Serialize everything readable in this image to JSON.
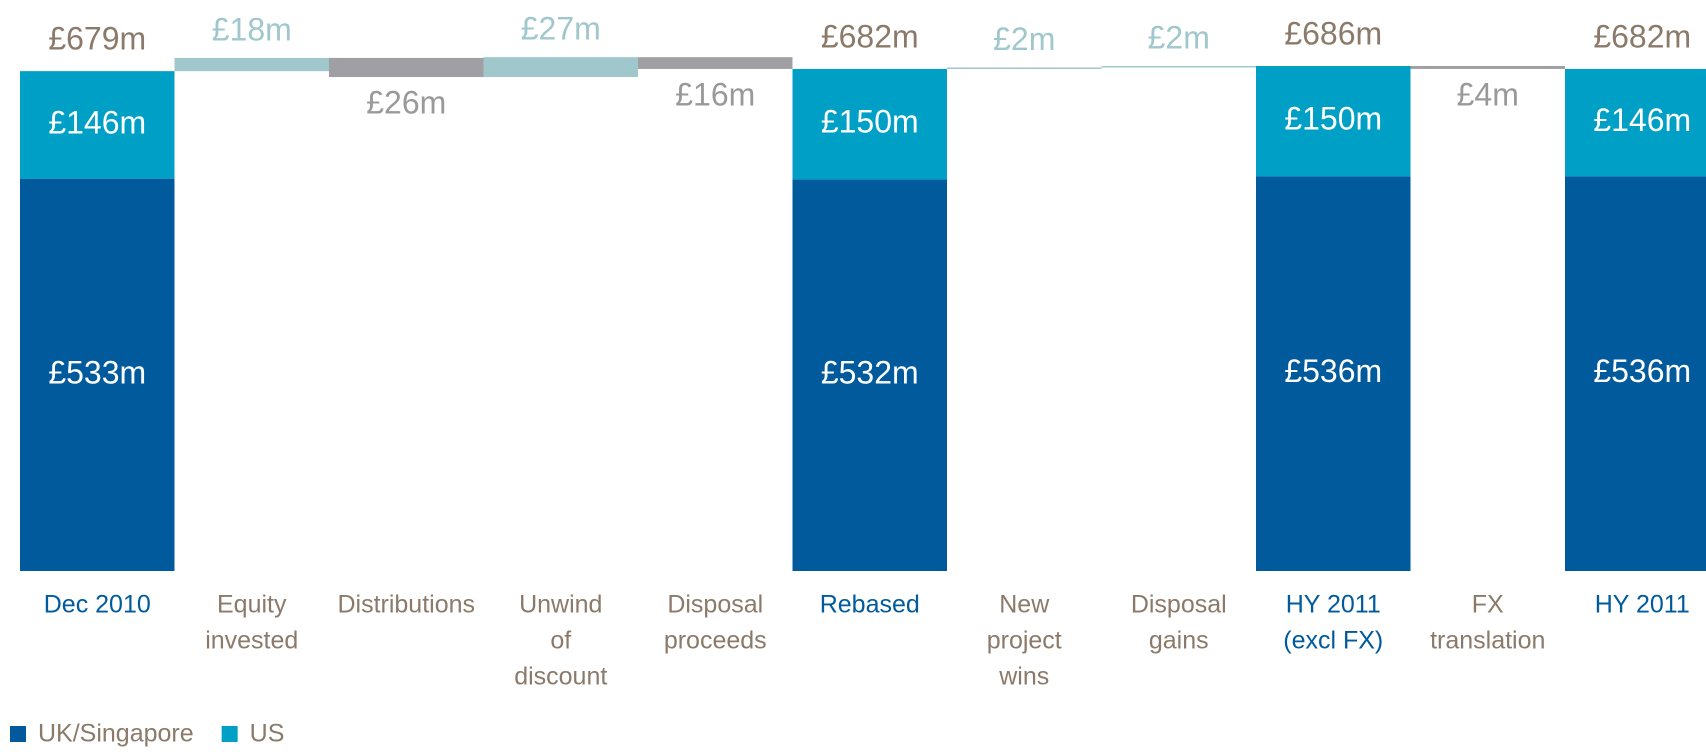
{
  "chart_data": {
    "type": "waterfall",
    "categories": [
      [
        "Dec 2010"
      ],
      [
        "Equity",
        "invested"
      ],
      [
        "Distributions"
      ],
      [
        "Unwind",
        "of",
        "discount"
      ],
      [
        "Disposal",
        "proceeds"
      ],
      [
        "Rebased"
      ],
      [
        "New",
        "project",
        "wins"
      ],
      [
        "Disposal",
        "gains"
      ],
      [
        "HY 2011",
        "(excl FX)"
      ],
      [
        "FX",
        "translation"
      ],
      [
        "HY 2011"
      ]
    ],
    "series": [
      {
        "name": "UK/Singapore",
        "color": "#005a9c",
        "values": [
          533,
          null,
          null,
          null,
          null,
          532,
          null,
          null,
          536,
          null,
          536
        ],
        "value_labels": [
          "£533m",
          null,
          null,
          null,
          null,
          "£532m",
          null,
          null,
          "£536m",
          null,
          "£536m"
        ]
      },
      {
        "name": "US",
        "color": "#00a0c6",
        "values": [
          146,
          null,
          null,
          null,
          null,
          150,
          null,
          null,
          150,
          null,
          146
        ],
        "value_labels": [
          "£146m",
          null,
          null,
          null,
          null,
          "£150m",
          null,
          null,
          "£150m",
          null,
          "£146m"
        ]
      }
    ],
    "totals": {
      "values": [
        679,
        null,
        null,
        null,
        null,
        682,
        null,
        null,
        686,
        null,
        682
      ],
      "value_labels": [
        "£679m",
        null,
        null,
        null,
        null,
        "£682m",
        null,
        null,
        "£686m",
        null,
        "£682m"
      ]
    },
    "changes": {
      "increase_color": "#9fc7cc",
      "decrease_color": "#a0a0a4",
      "values": [
        null,
        18,
        -26,
        27,
        -16,
        null,
        2,
        2,
        null,
        -4,
        null
      ],
      "value_labels": [
        null,
        "£18m",
        "£26m",
        "£27m",
        "£16m",
        null,
        "£2m",
        "£2m",
        null,
        "£4m",
        null
      ]
    }
  }
}
